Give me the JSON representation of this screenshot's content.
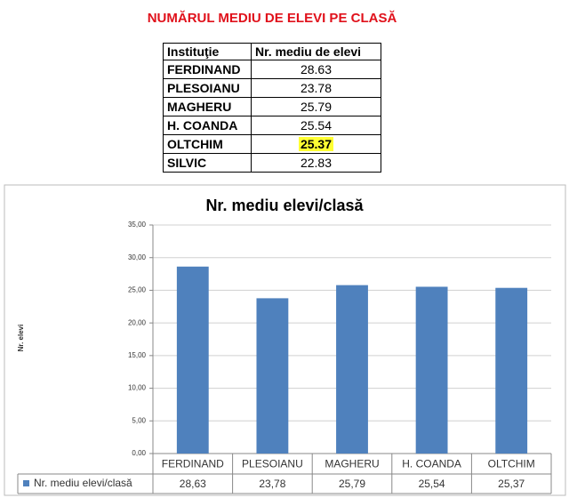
{
  "document": {
    "title": "NUMĂRUL MEDIU DE ELEVI PE CLASĂ",
    "table": {
      "header": [
        "Instituţie",
        "Nr. mediu de elevi"
      ],
      "rows": [
        [
          "FERDINAND",
          "28.63"
        ],
        [
          "PLESOIANU",
          "23.78"
        ],
        [
          "MAGHERU",
          "25.79"
        ],
        [
          "H. COANDA",
          "25.54"
        ],
        [
          "OLTCHIM",
          "25.37"
        ],
        [
          "SILVIC",
          "22.83"
        ]
      ]
    }
  },
  "chart_data": {
    "type": "bar",
    "title": "Nr. mediu elevi/clasă",
    "y_label": "Nr. elevi",
    "categories": [
      "FERDINAND",
      "PLESOIANU",
      "MAGHERU",
      "H. COANDA",
      "OLTCHIM"
    ],
    "series": [
      {
        "name": "Nr. mediu elevi/clasă",
        "color": "#4f81bd",
        "values": [
          28.63,
          23.78,
          25.79,
          25.54,
          25.37
        ],
        "value_labels": [
          "28,63",
          "23,78",
          "25,79",
          "25,54",
          "25,37"
        ]
      }
    ],
    "ylim": [
      0,
      35
    ],
    "yticks": [
      {
        "value": 0,
        "label": "0,00"
      },
      {
        "value": 5,
        "label": "5,00"
      },
      {
        "value": 10,
        "label": "10,00"
      },
      {
        "value": 15,
        "label": "15,00"
      },
      {
        "value": 20,
        "label": "20,00"
      },
      {
        "value": 25,
        "label": "25,00"
      },
      {
        "value": 30,
        "label": "30,00"
      },
      {
        "value": 35,
        "label": "35,00"
      }
    ],
    "grid": true
  }
}
